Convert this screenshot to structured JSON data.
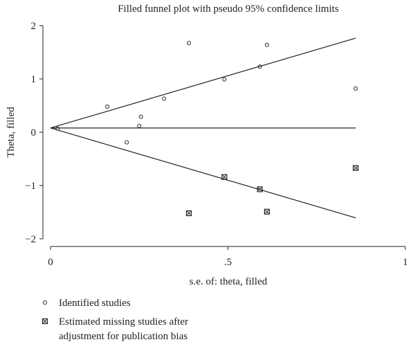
{
  "chart_data": {
    "type": "scatter",
    "title": "Filled funnel plot with pseudo 95% confidence limits",
    "xlabel": "s.e. of: theta, filled",
    "ylabel": "Theta, filled",
    "xlim": [
      0,
      1
    ],
    "ylim": [
      -2,
      2
    ],
    "x_ticks": [
      0,
      0.5,
      1
    ],
    "x_tick_labels": [
      "0",
      ".5",
      "1"
    ],
    "y_ticks": [
      -2,
      -1,
      0,
      1,
      2
    ],
    "y_tick_labels": [
      "−2",
      "−1",
      "0",
      "1",
      "2"
    ],
    "grid": false,
    "pooled_estimate": 0.08,
    "funnel_max_se": 0.86,
    "series": [
      {
        "name": "Identified studies",
        "marker": "hollow-circle",
        "points": [
          {
            "x": 0.02,
            "y": 0.07
          },
          {
            "x": 0.16,
            "y": 0.48
          },
          {
            "x": 0.215,
            "y": -0.19
          },
          {
            "x": 0.25,
            "y": 0.12
          },
          {
            "x": 0.255,
            "y": 0.29
          },
          {
            "x": 0.32,
            "y": 0.63
          },
          {
            "x": 0.39,
            "y": 1.67
          },
          {
            "x": 0.49,
            "y": 0.99
          },
          {
            "x": 0.59,
            "y": 1.23
          },
          {
            "x": 0.61,
            "y": 1.64
          },
          {
            "x": 0.86,
            "y": 0.82
          }
        ]
      },
      {
        "name": "Estimated missing studies after adjustment for publication bias",
        "marker": "boxed-x",
        "points": [
          {
            "x": 0.39,
            "y": -1.52
          },
          {
            "x": 0.49,
            "y": -0.84
          },
          {
            "x": 0.59,
            "y": -1.07
          },
          {
            "x": 0.61,
            "y": -1.49
          },
          {
            "x": 0.86,
            "y": -0.67
          }
        ]
      }
    ]
  },
  "legend": {
    "identified": "Identified studies",
    "missing_line1": "Estimated missing studies after",
    "missing_line2": "adjustment for publication bias"
  },
  "colors": {
    "ink": "#222222"
  }
}
